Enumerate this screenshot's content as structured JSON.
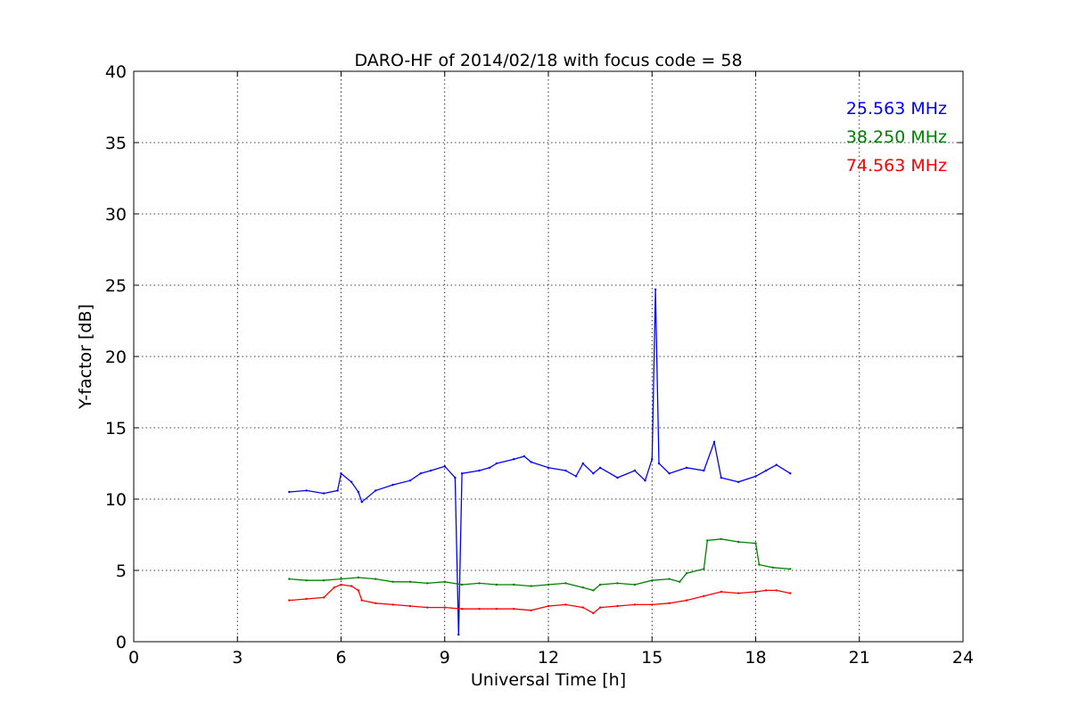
{
  "chart_data": {
    "type": "line",
    "title": "DARO-HF of 2014/02/18 with focus code = 58",
    "xlabel": "Universal Time [h]",
    "ylabel": "Y-factor [dB]",
    "xlim": [
      0,
      24
    ],
    "ylim": [
      0,
      40
    ],
    "xticks": [
      0,
      3,
      6,
      9,
      12,
      15,
      18,
      21,
      24
    ],
    "yticks": [
      0,
      5,
      10,
      15,
      20,
      25,
      30,
      35,
      40
    ],
    "grid": true,
    "legend_position": "top-right",
    "series": [
      {
        "name": "25.563 MHz",
        "color": "#0000ff",
        "x": [
          4.5,
          5.0,
          5.5,
          5.9,
          6.0,
          6.3,
          6.5,
          6.6,
          7.0,
          7.5,
          8.0,
          8.3,
          8.6,
          9.0,
          9.3,
          9.4,
          9.5,
          10.0,
          10.3,
          10.5,
          11.0,
          11.3,
          11.5,
          12.0,
          12.5,
          12.8,
          13.0,
          13.3,
          13.5,
          14.0,
          14.5,
          14.8,
          15.0,
          15.1,
          15.2,
          15.5,
          16.0,
          16.5,
          16.8,
          17.0,
          17.5,
          18.0,
          18.3,
          18.6,
          19.0
        ],
        "values": [
          10.5,
          10.6,
          10.4,
          10.6,
          11.8,
          11.2,
          10.5,
          9.8,
          10.6,
          11.0,
          11.3,
          11.8,
          12.0,
          12.3,
          11.5,
          0.5,
          11.8,
          12.0,
          12.2,
          12.5,
          12.8,
          13.0,
          12.6,
          12.2,
          12.0,
          11.6,
          12.5,
          11.8,
          12.2,
          11.5,
          12.0,
          11.3,
          12.8,
          24.7,
          12.5,
          11.8,
          12.2,
          12.0,
          14.0,
          11.5,
          11.2,
          11.6,
          12.0,
          12.4,
          11.8
        ]
      },
      {
        "name": "38.250 MHz",
        "color": "#008000",
        "x": [
          4.5,
          5.0,
          5.5,
          6.0,
          6.5,
          7.0,
          7.5,
          8.0,
          8.5,
          9.0,
          9.5,
          10.0,
          10.5,
          11.0,
          11.5,
          12.0,
          12.5,
          13.0,
          13.3,
          13.5,
          14.0,
          14.5,
          15.0,
          15.5,
          15.8,
          16.0,
          16.5,
          16.6,
          17.0,
          17.5,
          18.0,
          18.1,
          18.5,
          19.0
        ],
        "values": [
          4.4,
          4.3,
          4.3,
          4.4,
          4.5,
          4.4,
          4.2,
          4.2,
          4.1,
          4.2,
          4.0,
          4.1,
          4.0,
          4.0,
          3.9,
          4.0,
          4.1,
          3.8,
          3.6,
          4.0,
          4.1,
          4.0,
          4.3,
          4.4,
          4.2,
          4.8,
          5.1,
          7.1,
          7.2,
          7.0,
          6.9,
          5.4,
          5.2,
          5.1
        ]
      },
      {
        "name": "74.563 MHz",
        "color": "#ff0000",
        "x": [
          4.5,
          5.0,
          5.5,
          5.8,
          6.0,
          6.3,
          6.5,
          6.6,
          7.0,
          7.5,
          8.0,
          8.5,
          9.0,
          9.5,
          10.0,
          10.5,
          11.0,
          11.5,
          12.0,
          12.5,
          13.0,
          13.3,
          13.5,
          14.0,
          14.5,
          15.0,
          15.5,
          16.0,
          16.5,
          17.0,
          17.5,
          18.0,
          18.3,
          18.6,
          19.0
        ],
        "values": [
          2.9,
          3.0,
          3.1,
          3.8,
          4.0,
          3.9,
          3.6,
          2.9,
          2.7,
          2.6,
          2.5,
          2.4,
          2.4,
          2.3,
          2.3,
          2.3,
          2.3,
          2.2,
          2.5,
          2.6,
          2.4,
          2.0,
          2.4,
          2.5,
          2.6,
          2.6,
          2.7,
          2.9,
          3.2,
          3.5,
          3.4,
          3.5,
          3.6,
          3.6,
          3.4
        ]
      }
    ]
  }
}
